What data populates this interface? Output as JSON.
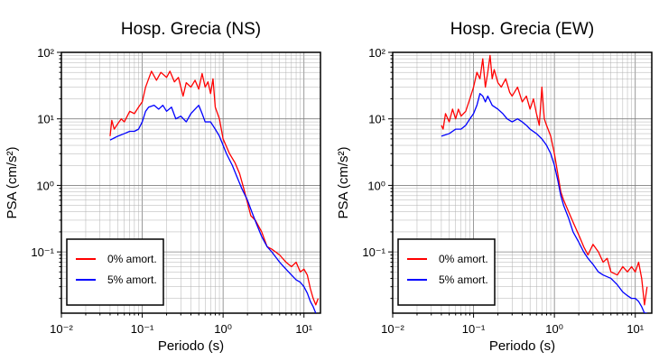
{
  "chart_data": [
    {
      "type": "line",
      "title": "Hosp. Grecia (NS)",
      "xlabel": "Periodo (s)",
      "ylabel": "PSA (cm/s²)",
      "xscale": "log",
      "yscale": "log",
      "xlim": [
        0.01,
        16
      ],
      "ylim": [
        0.012,
        100
      ],
      "x_ticks": [
        "10⁻²",
        "10⁻¹",
        "10⁰",
        "10¹"
      ],
      "y_ticks": [
        "10⁻¹",
        "10⁰",
        "10¹",
        "10²"
      ],
      "grid": true,
      "legend_position": "bottom-left",
      "series": [
        {
          "name": "0% amort.",
          "color": "#ff0000",
          "points": [
            [
              0.04,
              5.5
            ],
            [
              0.042,
              9.5
            ],
            [
              0.045,
              7
            ],
            [
              0.05,
              8.5
            ],
            [
              0.055,
              10
            ],
            [
              0.06,
              9
            ],
            [
              0.07,
              13
            ],
            [
              0.08,
              12
            ],
            [
              0.09,
              15
            ],
            [
              0.1,
              18
            ],
            [
              0.11,
              30
            ],
            [
              0.12,
              40
            ],
            [
              0.13,
              52
            ],
            [
              0.15,
              38
            ],
            [
              0.17,
              50
            ],
            [
              0.2,
              42
            ],
            [
              0.22,
              52
            ],
            [
              0.25,
              36
            ],
            [
              0.28,
              42
            ],
            [
              0.32,
              22
            ],
            [
              0.35,
              35
            ],
            [
              0.4,
              30
            ],
            [
              0.45,
              38
            ],
            [
              0.5,
              28
            ],
            [
              0.55,
              48
            ],
            [
              0.6,
              30
            ],
            [
              0.65,
              36
            ],
            [
              0.7,
              24
            ],
            [
              0.75,
              40
            ],
            [
              0.8,
              15
            ],
            [
              0.9,
              10
            ],
            [
              1.0,
              5
            ],
            [
              1.2,
              3
            ],
            [
              1.4,
              2.2
            ],
            [
              1.6,
              1.5
            ],
            [
              1.8,
              0.9
            ],
            [
              2.0,
              0.55
            ],
            [
              2.2,
              0.35
            ],
            [
              2.5,
              0.3
            ],
            [
              3.0,
              0.2
            ],
            [
              3.5,
              0.12
            ],
            [
              4.0,
              0.11
            ],
            [
              5.0,
              0.09
            ],
            [
              6.0,
              0.07
            ],
            [
              7.0,
              0.06
            ],
            [
              8.0,
              0.07
            ],
            [
              9.0,
              0.05
            ],
            [
              10.0,
              0.055
            ],
            [
              11.0,
              0.045
            ],
            [
              12.0,
              0.028
            ],
            [
              13.0,
              0.02
            ],
            [
              14.0,
              0.016
            ],
            [
              15.0,
              0.02
            ]
          ]
        },
        {
          "name": "5% amort.",
          "color": "#0000ff",
          "points": [
            [
              0.04,
              4.8
            ],
            [
              0.05,
              5.5
            ],
            [
              0.06,
              6
            ],
            [
              0.07,
              6.5
            ],
            [
              0.08,
              6.5
            ],
            [
              0.09,
              7
            ],
            [
              0.1,
              9
            ],
            [
              0.11,
              13
            ],
            [
              0.12,
              15
            ],
            [
              0.14,
              16
            ],
            [
              0.16,
              14
            ],
            [
              0.18,
              16
            ],
            [
              0.2,
              13
            ],
            [
              0.23,
              15
            ],
            [
              0.26,
              10
            ],
            [
              0.3,
              11
            ],
            [
              0.35,
              9
            ],
            [
              0.4,
              12
            ],
            [
              0.45,
              14
            ],
            [
              0.5,
              16
            ],
            [
              0.55,
              12
            ],
            [
              0.6,
              9
            ],
            [
              0.7,
              9
            ],
            [
              0.8,
              7
            ],
            [
              0.9,
              5.5
            ],
            [
              1.0,
              4
            ],
            [
              1.1,
              3
            ],
            [
              1.3,
              2
            ],
            [
              1.5,
              1.3
            ],
            [
              1.7,
              0.9
            ],
            [
              2.0,
              0.6
            ],
            [
              2.3,
              0.38
            ],
            [
              2.6,
              0.26
            ],
            [
              3.0,
              0.17
            ],
            [
              3.5,
              0.12
            ],
            [
              4.0,
              0.1
            ],
            [
              5.0,
              0.07
            ],
            [
              6.0,
              0.055
            ],
            [
              7.0,
              0.045
            ],
            [
              8.0,
              0.038
            ],
            [
              9.0,
              0.035
            ],
            [
              10.0,
              0.03
            ],
            [
              11.0,
              0.024
            ],
            [
              12.0,
              0.018
            ],
            [
              13.0,
              0.015
            ],
            [
              14.0,
              0.012
            ]
          ]
        }
      ]
    },
    {
      "type": "line",
      "title": "Hosp. Grecia (EW)",
      "xlabel": "Periodo (s)",
      "ylabel": "PSA (cm/s²)",
      "xscale": "log",
      "yscale": "log",
      "xlim": [
        0.01,
        16
      ],
      "ylim": [
        0.012,
        100
      ],
      "x_ticks": [
        "10⁻²",
        "10⁻¹",
        "10⁰",
        "10¹"
      ],
      "y_ticks": [
        "10⁻¹",
        "10⁰",
        "10¹",
        "10²"
      ],
      "grid": true,
      "legend_position": "bottom-left",
      "series": [
        {
          "name": "0% amort.",
          "color": "#ff0000",
          "points": [
            [
              0.04,
              8
            ],
            [
              0.042,
              7
            ],
            [
              0.045,
              12
            ],
            [
              0.05,
              9
            ],
            [
              0.055,
              14
            ],
            [
              0.06,
              10
            ],
            [
              0.065,
              14
            ],
            [
              0.07,
              11
            ],
            [
              0.08,
              13
            ],
            [
              0.09,
              20
            ],
            [
              0.1,
              30
            ],
            [
              0.11,
              50
            ],
            [
              0.12,
              40
            ],
            [
              0.13,
              80
            ],
            [
              0.14,
              30
            ],
            [
              0.15,
              50
            ],
            [
              0.16,
              90
            ],
            [
              0.17,
              40
            ],
            [
              0.18,
              55
            ],
            [
              0.2,
              35
            ],
            [
              0.22,
              30
            ],
            [
              0.25,
              40
            ],
            [
              0.28,
              25
            ],
            [
              0.3,
              22
            ],
            [
              0.35,
              30
            ],
            [
              0.4,
              18
            ],
            [
              0.45,
              22
            ],
            [
              0.5,
              14
            ],
            [
              0.55,
              20
            ],
            [
              0.6,
              12
            ],
            [
              0.65,
              8
            ],
            [
              0.7,
              30
            ],
            [
              0.75,
              10
            ],
            [
              0.8,
              8
            ],
            [
              0.9,
              5.5
            ],
            [
              1.0,
              3
            ],
            [
              1.1,
              1.5
            ],
            [
              1.2,
              0.8
            ],
            [
              1.3,
              0.6
            ],
            [
              1.5,
              0.4
            ],
            [
              1.7,
              0.28
            ],
            [
              2.0,
              0.18
            ],
            [
              2.3,
              0.12
            ],
            [
              2.6,
              0.09
            ],
            [
              3.0,
              0.13
            ],
            [
              3.5,
              0.1
            ],
            [
              4.0,
              0.07
            ],
            [
              4.5,
              0.08
            ],
            [
              5.0,
              0.05
            ],
            [
              6.0,
              0.045
            ],
            [
              7.0,
              0.06
            ],
            [
              8.0,
              0.05
            ],
            [
              9.0,
              0.06
            ],
            [
              10.0,
              0.05
            ],
            [
              11.0,
              0.07
            ],
            [
              12.0,
              0.04
            ],
            [
              13.0,
              0.016
            ],
            [
              14.0,
              0.03
            ]
          ]
        },
        {
          "name": "5% amort.",
          "color": "#0000ff",
          "points": [
            [
              0.04,
              5.5
            ],
            [
              0.05,
              6
            ],
            [
              0.06,
              7
            ],
            [
              0.07,
              7
            ],
            [
              0.08,
              8
            ],
            [
              0.09,
              10
            ],
            [
              0.1,
              12
            ],
            [
              0.11,
              16
            ],
            [
              0.12,
              24
            ],
            [
              0.13,
              22
            ],
            [
              0.14,
              18
            ],
            [
              0.15,
              22
            ],
            [
              0.17,
              16
            ],
            [
              0.2,
              14
            ],
            [
              0.23,
              12
            ],
            [
              0.26,
              10
            ],
            [
              0.3,
              9
            ],
            [
              0.35,
              10
            ],
            [
              0.4,
              9
            ],
            [
              0.45,
              8
            ],
            [
              0.5,
              7
            ],
            [
              0.6,
              6
            ],
            [
              0.7,
              5
            ],
            [
              0.8,
              4
            ],
            [
              0.9,
              3
            ],
            [
              1.0,
              2
            ],
            [
              1.1,
              1.2
            ],
            [
              1.2,
              0.7
            ],
            [
              1.3,
              0.5
            ],
            [
              1.5,
              0.32
            ],
            [
              1.7,
              0.2
            ],
            [
              2.0,
              0.14
            ],
            [
              2.3,
              0.1
            ],
            [
              2.6,
              0.08
            ],
            [
              3.0,
              0.065
            ],
            [
              3.5,
              0.05
            ],
            [
              4.0,
              0.045
            ],
            [
              5.0,
              0.04
            ],
            [
              6.0,
              0.032
            ],
            [
              7.0,
              0.025
            ],
            [
              8.0,
              0.022
            ],
            [
              9.0,
              0.02
            ],
            [
              10.0,
              0.02
            ],
            [
              11.0,
              0.018
            ],
            [
              12.0,
              0.015
            ],
            [
              13.0,
              0.012
            ],
            [
              14.0,
              0.012
            ]
          ]
        }
      ]
    }
  ]
}
